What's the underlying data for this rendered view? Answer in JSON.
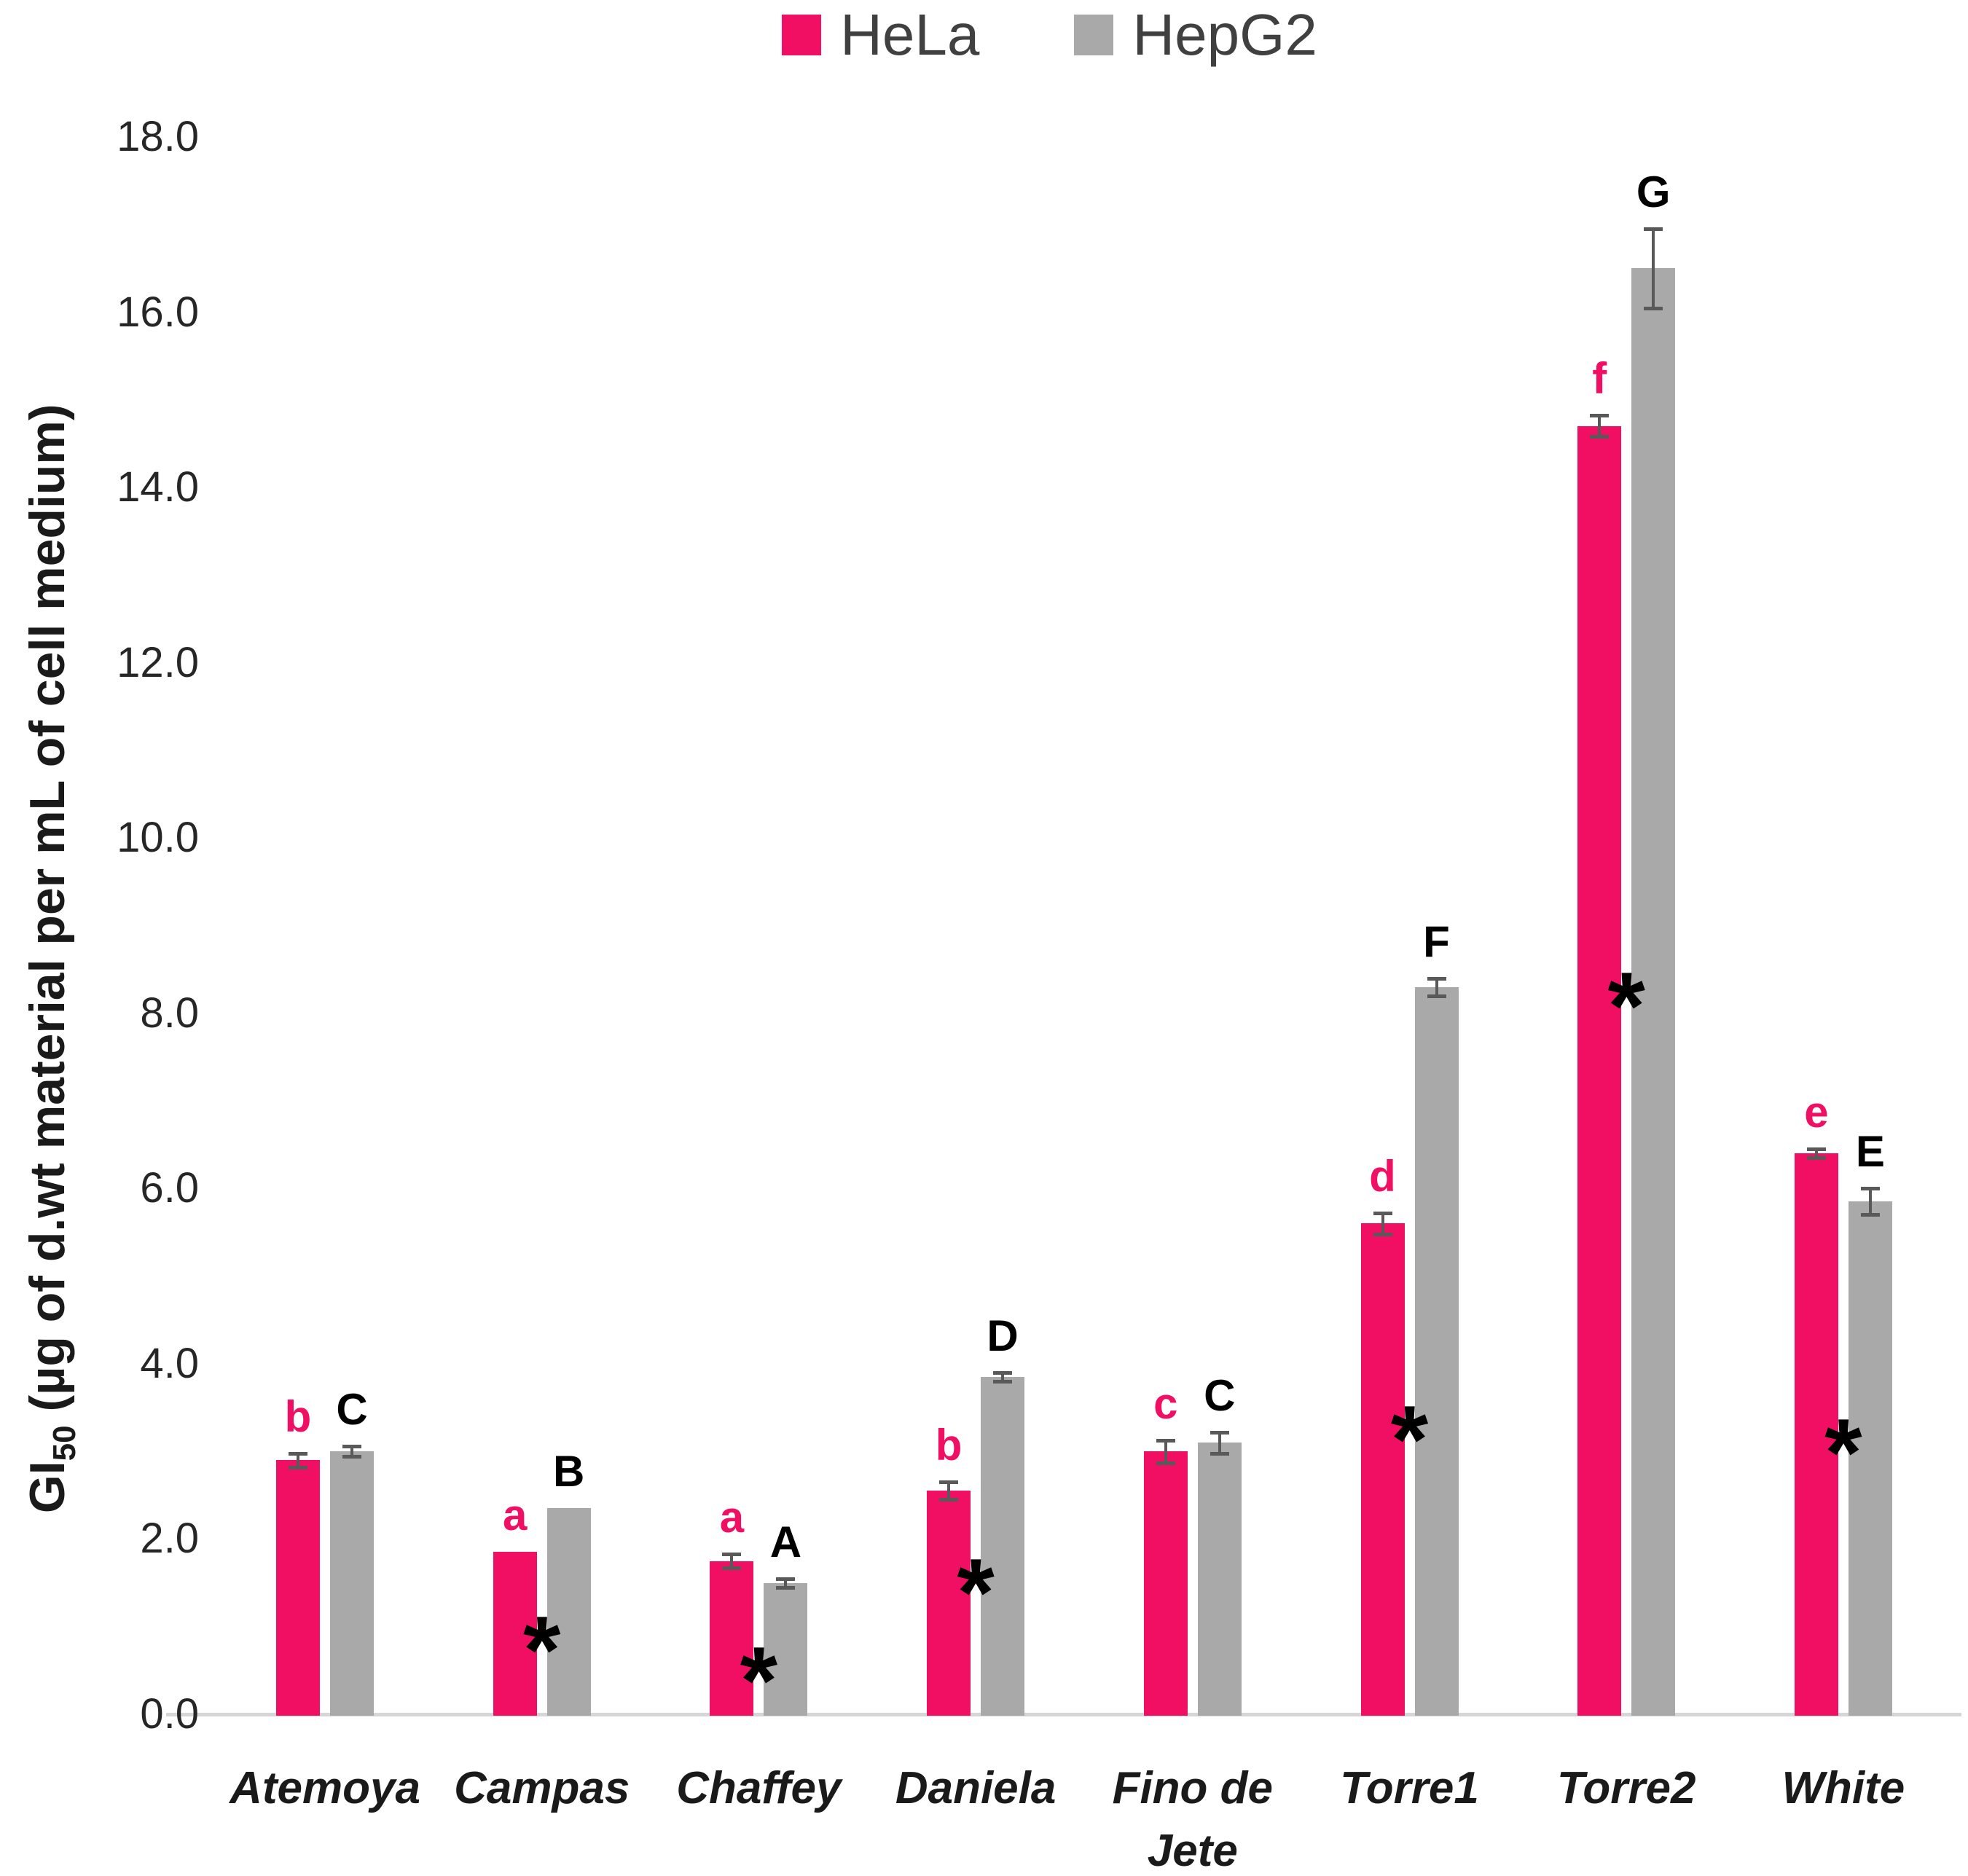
{
  "chart_data": {
    "type": "bar",
    "title": "",
    "categories": [
      "Atemoya",
      "Campas",
      "Chaffey",
      "Daniela",
      "Fino de\nJete",
      "Torre1",
      "Torre2",
      "White"
    ],
    "series": [
      {
        "name": "HeLa",
        "color": "#F00F63",
        "values": [
          2.9,
          1.85,
          1.75,
          2.55,
          3.0,
          5.6,
          14.7,
          6.4
        ],
        "errors": [
          0.08,
          0,
          0.08,
          0.1,
          0.13,
          0.12,
          0.12,
          0.05
        ],
        "letters": [
          "b",
          "a",
          "a",
          "b",
          "c",
          "d",
          "f",
          "e"
        ]
      },
      {
        "name": "HepG2",
        "color": "#A9A9A9",
        "values": [
          3.0,
          2.35,
          1.5,
          3.85,
          3.1,
          8.3,
          16.5,
          5.85
        ],
        "errors": [
          0.06,
          0,
          0.05,
          0.05,
          0.12,
          0.1,
          0.45,
          0.15
        ],
        "letters": [
          "C",
          "B",
          "A",
          "D",
          "C",
          "F",
          "G",
          "E"
        ]
      }
    ],
    "significance_asterisks": [
      null,
      1.15,
      0.8,
      1.8,
      null,
      3.55,
      8.5,
      3.4
    ],
    "asterisk_symbol": "*",
    "ylabel_base": "GI",
    "ylabel_sub": "50",
    "ylabel_rest": " (µg of d.wt material per mL of cell medium)",
    "yticks": [
      "0.0",
      "2.0",
      "4.0",
      "6.0",
      "8.0",
      "10.0",
      "12.0",
      "14.0",
      "16.0",
      "18.0"
    ],
    "ytick_values": [
      0,
      2,
      4,
      6,
      8,
      10,
      12,
      14,
      16,
      18
    ],
    "ylim": [
      0,
      18
    ],
    "grid": false,
    "legend_position": "top",
    "letter_color_hepg2": "#000000",
    "error_bar_color": "#595959",
    "axis_line_color": "#d6d6d6"
  }
}
